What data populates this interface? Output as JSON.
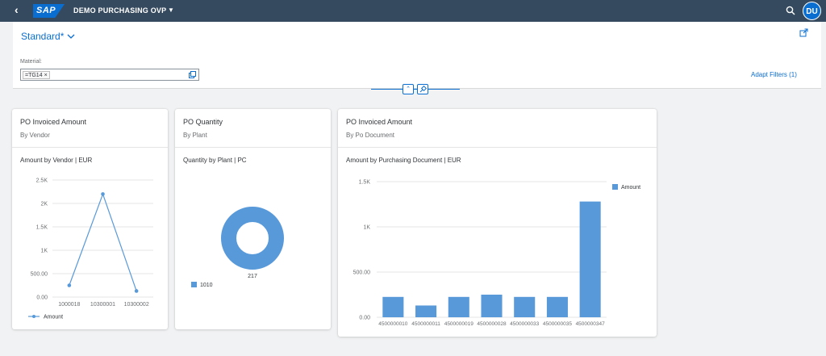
{
  "shell": {
    "logo_text": "SAP",
    "app_title": "DEMO PURCHASING OVP",
    "avatar_initials": "DU"
  },
  "filter": {
    "variant_name": "Standard*",
    "material_label": "Material:",
    "material_token": "=TG14",
    "adapt_filters_label": "Adapt Filters (1)"
  },
  "cards": [
    {
      "title": "PO Invoiced Amount",
      "subtitle": "By Vendor",
      "chart_title": "Amount by Vendor | EUR"
    },
    {
      "title": "PO Quantity",
      "subtitle": "By Plant",
      "chart_title": "Quantity by Plant | PC"
    },
    {
      "title": "PO Invoiced Amount",
      "subtitle": "By Po Document",
      "chart_title": "Amount by Purchasing Document | EUR"
    }
  ],
  "chart_data": [
    {
      "type": "line",
      "title": "Amount by Vendor | EUR",
      "categories": [
        "1000018",
        "10300001",
        "10300002"
      ],
      "series": [
        {
          "name": "Amount",
          "values": [
            250,
            2200,
            130
          ]
        }
      ],
      "y_ticks": [
        "0.00",
        "500.00",
        "1K",
        "1.5K",
        "2K",
        "2.5K"
      ],
      "ylim": [
        0,
        2500
      ],
      "grid": true,
      "legend_position": "bottom-left",
      "color": "#5899da"
    },
    {
      "type": "pie",
      "title": "Quantity by Plant | PC",
      "categories": [
        "1010"
      ],
      "values": [
        217
      ],
      "data_label": "217",
      "donut": true,
      "legend_position": "bottom-left",
      "color": "#5899da"
    },
    {
      "type": "bar",
      "title": "Amount by Purchasing Document | EUR",
      "categories": [
        "4500000010",
        "4500000011",
        "4500000019",
        "4500000028",
        "4500000033",
        "4500000035",
        "4500000347"
      ],
      "series": [
        {
          "name": "Amount",
          "values": [
            225,
            130,
            225,
            250,
            225,
            225,
            1280
          ]
        }
      ],
      "y_ticks": [
        "0.00",
        "500.00",
        "1K",
        "1.5K"
      ],
      "ylim": [
        0,
        1500
      ],
      "grid": true,
      "legend_position": "top-right",
      "color": "#5899da"
    }
  ]
}
